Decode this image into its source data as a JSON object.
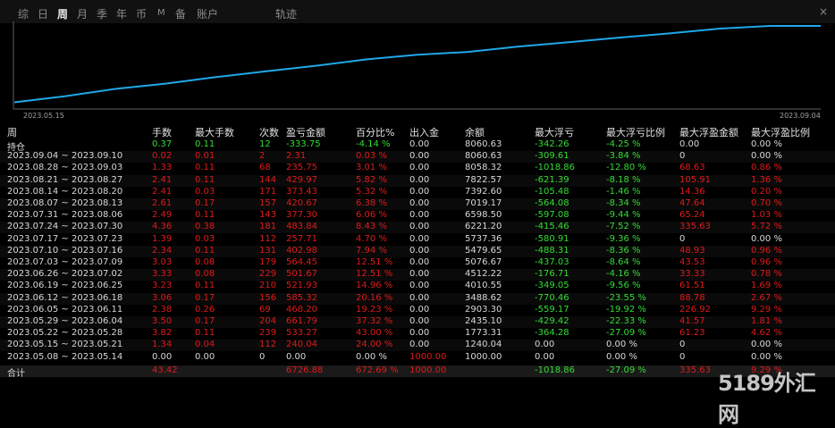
{
  "tabs": [
    {
      "label": "综",
      "active": false
    },
    {
      "label": "日",
      "active": false
    },
    {
      "label": "周",
      "active": true
    },
    {
      "label": "月",
      "active": false
    },
    {
      "label": "季",
      "active": false
    },
    {
      "label": "年",
      "active": false
    },
    {
      "label": "币",
      "active": false
    },
    {
      "label": "M",
      "active": false
    },
    {
      "label": "备",
      "active": false
    },
    {
      "label": "账户",
      "active": false
    },
    {
      "label": "轨迹",
      "active": false
    }
  ],
  "close_label": "×",
  "chart": {
    "start_date": "2023.05.15",
    "end_date": "2023.09.04",
    "line_color": "#1fa8e8",
    "series_values": [
      1240.04,
      1773.31,
      2435.1,
      2903.3,
      3488.62,
      4010.55,
      4512.22,
      5076.67,
      5479.65,
      5737.36,
      6221.2,
      6598.5,
      7019.17,
      7392.6,
      7822.57,
      8058.32,
      8060.63
    ]
  },
  "columns": [
    "周",
    "手数",
    "最大手数",
    "次数",
    "盈亏金额",
    "百分比%",
    "出入金",
    "余额",
    "最大浮亏",
    "最大浮亏比例",
    "最大浮盈金额",
    "最大浮盈比例"
  ],
  "rows": [
    {
      "period": "持仓",
      "lots": "0.37",
      "maxlots": "0.11",
      "count": "12",
      "pnl": "-333.75",
      "pct": "-4.14 %",
      "io": "0.00",
      "bal": "8060.63",
      "maxdd": "-342.26",
      "maxddp": "-4.25 %",
      "maxfp": "0.00",
      "maxfpp": "0.00 %",
      "tone": "green"
    },
    {
      "period": "2023.09.04 ~ 2023.09.10",
      "lots": "0.02",
      "maxlots": "0.01",
      "count": "2",
      "pnl": "2.31",
      "pct": "0.03 %",
      "io": "0.00",
      "bal": "8060.63",
      "maxdd": "-309.61",
      "maxddp": "-3.84 %",
      "maxfp": "0",
      "maxfpp": "0.00 %",
      "tone": "red"
    },
    {
      "period": "2023.08.28 ~ 2023.09.03",
      "lots": "1.33",
      "maxlots": "0.11",
      "count": "68",
      "pnl": "235.75",
      "pct": "3.01 %",
      "io": "0.00",
      "bal": "8058.32",
      "maxdd": "-1018.86",
      "maxddp": "-12.80 %",
      "maxfp": "68.63",
      "maxfpp": "0.86 %",
      "tone": "red"
    },
    {
      "period": "2023.08.21 ~ 2023.08.27",
      "lots": "2.41",
      "maxlots": "0.11",
      "count": "144",
      "pnl": "429.97",
      "pct": "5.82 %",
      "io": "0.00",
      "bal": "7822.57",
      "maxdd": "-621.39",
      "maxddp": "-8.18 %",
      "maxfp": "105.91",
      "maxfpp": "1.36 %",
      "tone": "red"
    },
    {
      "period": "2023.08.14 ~ 2023.08.20",
      "lots": "2.41",
      "maxlots": "0.03",
      "count": "171",
      "pnl": "373.43",
      "pct": "5.32 %",
      "io": "0.00",
      "bal": "7392.60",
      "maxdd": "-105.48",
      "maxddp": "-1.46 %",
      "maxfp": "14.36",
      "maxfpp": "0.20 %",
      "tone": "red"
    },
    {
      "period": "2023.08.07 ~ 2023.08.13",
      "lots": "2.61",
      "maxlots": "0.17",
      "count": "157",
      "pnl": "420.67",
      "pct": "6.38 %",
      "io": "0.00",
      "bal": "7019.17",
      "maxdd": "-564.08",
      "maxddp": "-8.34 %",
      "maxfp": "47.64",
      "maxfpp": "0.70 %",
      "tone": "red"
    },
    {
      "period": "2023.07.31 ~ 2023.08.06",
      "lots": "2.49",
      "maxlots": "0.11",
      "count": "143",
      "pnl": "377.30",
      "pct": "6.06 %",
      "io": "0.00",
      "bal": "6598.50",
      "maxdd": "-597.08",
      "maxddp": "-9.44 %",
      "maxfp": "65.24",
      "maxfpp": "1.03 %",
      "tone": "red"
    },
    {
      "period": "2023.07.24 ~ 2023.07.30",
      "lots": "4.36",
      "maxlots": "0.38",
      "count": "181",
      "pnl": "483.84",
      "pct": "8.43 %",
      "io": "0.00",
      "bal": "6221.20",
      "maxdd": "-415.46",
      "maxddp": "-7.52 %",
      "maxfp": "335.63",
      "maxfpp": "5.72 %",
      "tone": "red"
    },
    {
      "period": "2023.07.17 ~ 2023.07.23",
      "lots": "1.39",
      "maxlots": "0.03",
      "count": "112",
      "pnl": "257.71",
      "pct": "4.70 %",
      "io": "0.00",
      "bal": "5737.36",
      "maxdd": "-580.91",
      "maxddp": "-9.36 %",
      "maxfp": "0",
      "maxfpp": "0.00 %",
      "tone": "red"
    },
    {
      "period": "2023.07.10 ~ 2023.07.16",
      "lots": "2.34",
      "maxlots": "0.11",
      "count": "131",
      "pnl": "402.98",
      "pct": "7.94 %",
      "io": "0.00",
      "bal": "5479.65",
      "maxdd": "-488.31",
      "maxddp": "-8.36 %",
      "maxfp": "48.93",
      "maxfpp": "0.96 %",
      "tone": "red"
    },
    {
      "period": "2023.07.03 ~ 2023.07.09",
      "lots": "3.03",
      "maxlots": "0.08",
      "count": "179",
      "pnl": "564.45",
      "pct": "12.51 %",
      "io": "0.00",
      "bal": "5076.67",
      "maxdd": "-437.03",
      "maxddp": "-8.64 %",
      "maxfp": "43.53",
      "maxfpp": "0.96 %",
      "tone": "red"
    },
    {
      "period": "2023.06.26 ~ 2023.07.02",
      "lots": "3.33",
      "maxlots": "0.08",
      "count": "229",
      "pnl": "501.67",
      "pct": "12.51 %",
      "io": "0.00",
      "bal": "4512.22",
      "maxdd": "-176.71",
      "maxddp": "-4.16 %",
      "maxfp": "33.33",
      "maxfpp": "0.78 %",
      "tone": "red"
    },
    {
      "period": "2023.06.19 ~ 2023.06.25",
      "lots": "3.23",
      "maxlots": "0.11",
      "count": "210",
      "pnl": "521.93",
      "pct": "14.96 %",
      "io": "0.00",
      "bal": "4010.55",
      "maxdd": "-349.05",
      "maxddp": "-9.56 %",
      "maxfp": "61.51",
      "maxfpp": "1.69 %",
      "tone": "red"
    },
    {
      "period": "2023.06.12 ~ 2023.06.18",
      "lots": "3.06",
      "maxlots": "0.17",
      "count": "156",
      "pnl": "585.32",
      "pct": "20.16 %",
      "io": "0.00",
      "bal": "3488.62",
      "maxdd": "-770.46",
      "maxddp": "-23.55 %",
      "maxfp": "88.78",
      "maxfpp": "2.67 %",
      "tone": "red"
    },
    {
      "period": "2023.06.05 ~ 2023.06.11",
      "lots": "2.38",
      "maxlots": "0.26",
      "count": "69",
      "pnl": "468.20",
      "pct": "19.23 %",
      "io": "0.00",
      "bal": "2903.30",
      "maxdd": "-559.17",
      "maxddp": "-19.92 %",
      "maxfp": "226.92",
      "maxfpp": "9.29 %",
      "tone": "red"
    },
    {
      "period": "2023.05.29 ~ 2023.06.04",
      "lots": "3.50",
      "maxlots": "0.17",
      "count": "204",
      "pnl": "661.79",
      "pct": "37.32 %",
      "io": "0.00",
      "bal": "2435.10",
      "maxdd": "-429.42",
      "maxddp": "-22.33 %",
      "maxfp": "41.57",
      "maxfpp": "1.81 %",
      "tone": "red"
    },
    {
      "period": "2023.05.22 ~ 2023.05.28",
      "lots": "3.82",
      "maxlots": "0.11",
      "count": "239",
      "pnl": "533.27",
      "pct": "43.00 %",
      "io": "0.00",
      "bal": "1773.31",
      "maxdd": "-364.28",
      "maxddp": "-27.09 %",
      "maxfp": "61.23",
      "maxfpp": "4.62 %",
      "tone": "red"
    },
    {
      "period": "2023.05.15 ~ 2023.05.21",
      "lots": "1.34",
      "maxlots": "0.04",
      "count": "112",
      "pnl": "240.04",
      "pct": "24.00 %",
      "io": "0.00",
      "bal": "1240.04",
      "maxdd": "0.00",
      "maxddp": "0.00 %",
      "maxfp": "0",
      "maxfpp": "0.00 %",
      "tone": "red"
    },
    {
      "period": "2023.05.08 ~ 2023.05.14",
      "lots": "0.00",
      "maxlots": "0.00",
      "count": "0",
      "pnl": "0.00",
      "pct": "0.00 %",
      "io": "1000.00",
      "bal": "1000.00",
      "maxdd": "0.00",
      "maxddp": "0.00 %",
      "maxfp": "0",
      "maxfpp": "0.00 %",
      "tone": "white"
    }
  ],
  "total": {
    "period": "合计",
    "lots": "43.42",
    "pnl": "6726.88",
    "pct": "672.69 %",
    "io": "1000.00",
    "maxdd": "-1018.86",
    "maxddp": "-27.09 %",
    "maxfp": "335.63",
    "maxfpp": "9.29 %"
  },
  "watermark": "5189外汇网"
}
